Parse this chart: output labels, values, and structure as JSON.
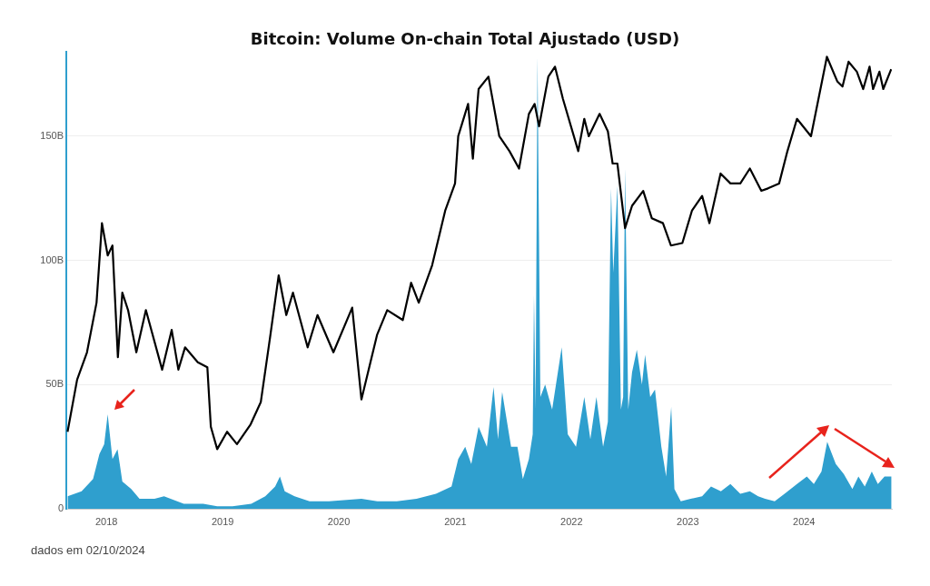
{
  "chart_data": {
    "type": "area",
    "title": "Bitcoin: Volume On-chain Total Ajustado (USD)",
    "annotations": [
      "dados em 02/10/2024"
    ],
    "xlim": [
      "2017-08-28",
      "2024-10-03"
    ],
    "xticks": [
      {
        "value": "2018-01-01",
        "label": "2018"
      },
      {
        "value": "2019-01-01",
        "label": "2019"
      },
      {
        "value": "2020-01-01",
        "label": "2020"
      },
      {
        "value": "2021-01-01",
        "label": "2021"
      },
      {
        "value": "2022-01-01",
        "label": "2022"
      },
      {
        "value": "2023-01-01",
        "label": "2023"
      },
      {
        "value": "2024-01-01",
        "label": "2024"
      }
    ],
    "ylim": [
      0,
      184
    ],
    "yticks": [
      0,
      {
        "value": 50,
        "label": "50B"
      },
      {
        "value": 100,
        "label": "100B"
      },
      {
        "value": 150,
        "label": "150B"
      }
    ],
    "grid": "y",
    "legend": false,
    "series": [
      {
        "color": "#2f9fce",
        "x": [
          "2017-09-01",
          "2017-10-15",
          "2017-11-20",
          "2017-12-10",
          "2017-12-25",
          "2018-01-05",
          "2018-01-20",
          "2018-02-05",
          "2018-02-20",
          "2018-03-20",
          "2018-04-15",
          "2018-06-01",
          "2018-07-01",
          "2018-09-01",
          "2018-11-01",
          "2018-12-15",
          "2019-02-01",
          "2019-04-01",
          "2019-05-15",
          "2019-06-15",
          "2019-06-30",
          "2019-07-15",
          "2019-08-15",
          "2019-10-01",
          "2019-12-01",
          "2020-03-12",
          "2020-05-01",
          "2020-07-01",
          "2020-09-01",
          "2020-11-01",
          "2020-12-20",
          "2021-01-10",
          "2021-02-01",
          "2021-02-20",
          "2021-03-15",
          "2021-04-10",
          "2021-05-01",
          "2021-05-15",
          "2021-05-28",
          "2021-06-25",
          "2021-07-15",
          "2021-08-01",
          "2021-08-20",
          "2021-09-01",
          "2021-09-05",
          "2021-09-10",
          "2021-09-16",
          "2021-09-25",
          "2021-10-10",
          "2021-11-01",
          "2021-12-01",
          "2021-12-20",
          "2022-01-15",
          "2022-02-10",
          "2022-03-01",
          "2022-03-20",
          "2022-04-10",
          "2022-04-25",
          "2022-05-05",
          "2022-05-12",
          "2022-05-25",
          "2022-06-05",
          "2022-06-12",
          "2022-06-18",
          "2022-06-28",
          "2022-07-10",
          "2022-07-25",
          "2022-08-10",
          "2022-08-20",
          "2022-09-05",
          "2022-09-20",
          "2022-10-10",
          "2022-10-25",
          "2022-11-10",
          "2022-11-20",
          "2022-12-10",
          "2023-01-10",
          "2023-02-15",
          "2023-03-15",
          "2023-04-15",
          "2023-05-15",
          "2023-06-15",
          "2023-07-15",
          "2023-08-10",
          "2023-09-01",
          "2023-10-01",
          "2023-11-01",
          "2023-12-10",
          "2024-01-10",
          "2024-02-01",
          "2024-02-25",
          "2024-03-14",
          "2024-04-10",
          "2024-05-05",
          "2024-06-01",
          "2024-06-20",
          "2024-07-10",
          "2024-08-01",
          "2024-08-20",
          "2024-09-10",
          "2024-10-02"
        ],
        "values": [
          5,
          7,
          12,
          22,
          26,
          38,
          20,
          24,
          11,
          8,
          4,
          4,
          5,
          2,
          2,
          1,
          1,
          2,
          5,
          9,
          13,
          7,
          5,
          3,
          3,
          4,
          3,
          3,
          4,
          6,
          9,
          20,
          25,
          18,
          33,
          25,
          49,
          28,
          47,
          25,
          25,
          12,
          20,
          30,
          86,
          40,
          182,
          45,
          50,
          40,
          65,
          30,
          25,
          45,
          28,
          45,
          25,
          35,
          129,
          95,
          130,
          40,
          45,
          137,
          40,
          55,
          64,
          50,
          62,
          45,
          48,
          25,
          13,
          41,
          8,
          3,
          4,
          5,
          9,
          7,
          10,
          6,
          7,
          5,
          4,
          3,
          6,
          10,
          13,
          10,
          15,
          27,
          18,
          14,
          8,
          13,
          9,
          15,
          10,
          13,
          13
        ]
      },
      {
        "type": "line",
        "color": "#000000",
        "x": [
          "2017-09-01",
          "2017-10-01",
          "2017-11-01",
          "2017-12-01",
          "2017-12-18",
          "2018-01-05",
          "2018-01-20",
          "2018-02-06",
          "2018-02-20",
          "2018-03-10",
          "2018-04-05",
          "2018-05-05",
          "2018-06-25",
          "2018-07-25",
          "2018-08-15",
          "2018-09-05",
          "2018-10-15",
          "2018-11-14",
          "2018-11-25",
          "2018-12-15",
          "2019-01-15",
          "2019-02-15",
          "2019-03-30",
          "2019-05-01",
          "2019-05-30",
          "2019-06-26",
          "2019-07-20",
          "2019-08-10",
          "2019-09-25",
          "2019-10-26",
          "2019-12-15",
          "2020-02-12",
          "2020-03-12",
          "2020-04-30",
          "2020-06-01",
          "2020-07-20",
          "2020-08-15",
          "2020-09-08",
          "2020-10-20",
          "2020-11-30",
          "2020-12-31",
          "2021-01-10",
          "2021-02-10",
          "2021-02-25",
          "2021-03-15",
          "2021-04-15",
          "2021-05-19",
          "2021-06-20",
          "2021-07-20",
          "2021-08-20",
          "2021-09-07",
          "2021-09-21",
          "2021-10-20",
          "2021-11-10",
          "2021-12-05",
          "2022-01-22",
          "2022-02-10",
          "2022-02-24",
          "2022-03-30",
          "2022-04-25",
          "2022-05-10",
          "2022-05-25",
          "2022-06-18",
          "2022-07-10",
          "2022-08-14",
          "2022-09-10",
          "2022-10-15",
          "2022-11-09",
          "2022-12-15",
          "2023-01-14",
          "2023-02-15",
          "2023-03-10",
          "2023-04-14",
          "2023-05-15",
          "2023-06-15",
          "2023-07-15",
          "2023-08-20",
          "2023-09-10",
          "2023-10-15",
          "2023-11-10",
          "2023-12-10",
          "2024-01-23",
          "2024-03-13",
          "2024-04-15",
          "2024-05-01",
          "2024-05-20",
          "2024-06-15",
          "2024-07-05",
          "2024-07-25",
          "2024-08-05",
          "2024-08-25",
          "2024-09-06",
          "2024-10-01"
        ],
        "values": [
          31,
          52,
          63,
          83,
          115,
          102,
          106,
          61,
          87,
          80,
          63,
          80,
          56,
          72,
          56,
          65,
          59,
          57,
          33,
          24,
          31,
          26,
          34,
          43,
          69,
          94,
          78,
          87,
          65,
          78,
          63,
          81,
          44,
          70,
          80,
          76,
          91,
          83,
          98,
          120,
          131,
          150,
          163,
          141,
          169,
          174,
          150,
          144,
          137,
          159,
          163,
          154,
          174,
          178,
          165,
          144,
          157,
          150,
          159,
          152,
          139,
          139,
          113,
          122,
          128,
          117,
          115,
          106,
          107,
          120,
          126,
          115,
          135,
          131,
          131,
          137,
          128,
          129,
          131,
          144,
          157,
          150,
          182,
          172,
          170,
          180,
          176,
          169,
          178,
          169,
          176,
          169,
          177
        ]
      }
    ]
  }
}
